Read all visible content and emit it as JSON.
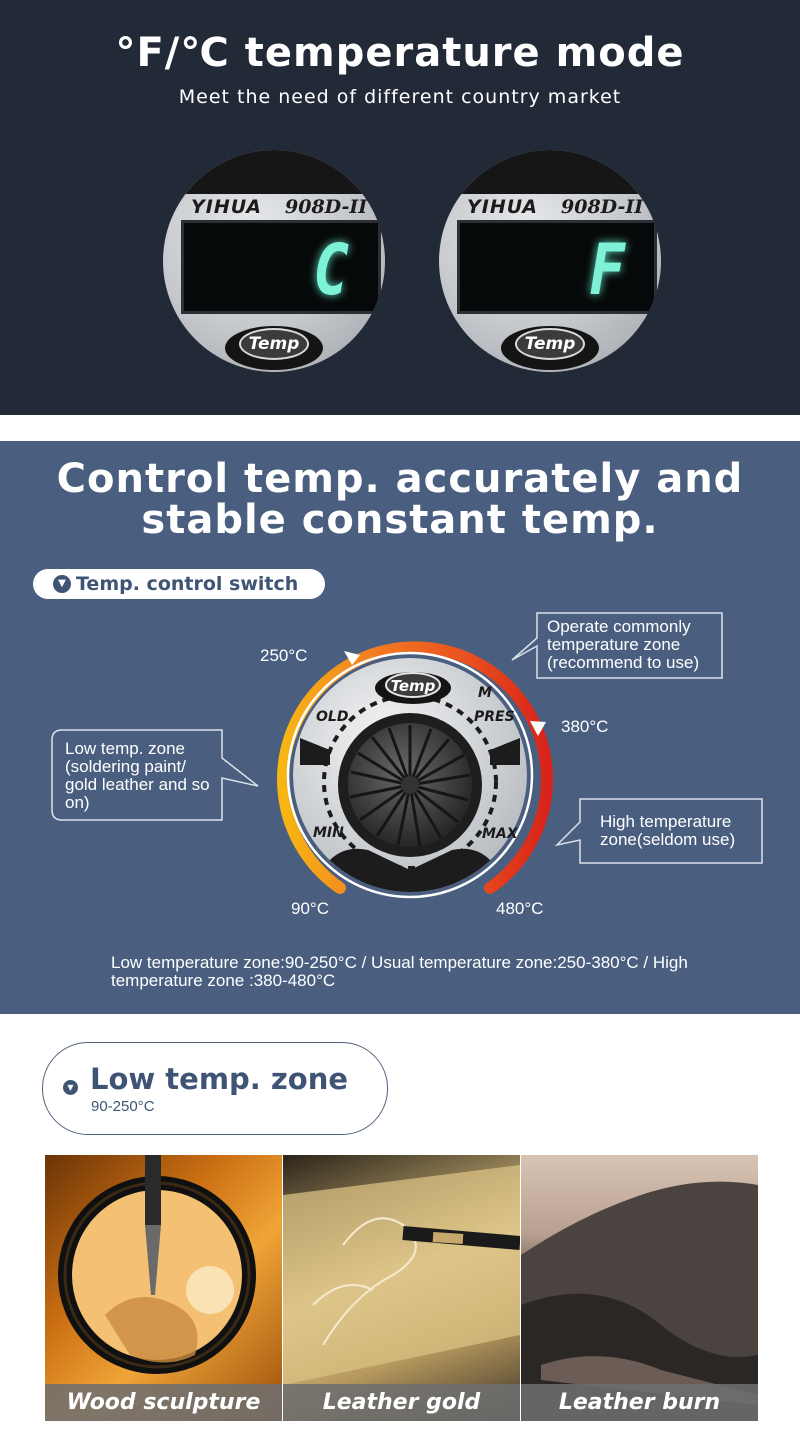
{
  "section1": {
    "title": "°F/℃ temperature mode",
    "subtitle": "Meet the need of different country market",
    "displays": [
      {
        "brand": "YIHUA",
        "model": "908D-II",
        "readout": "C",
        "button": "Temp"
      },
      {
        "brand": "YIHUA",
        "model": "908D-II",
        "readout": "F",
        "button": "Temp"
      }
    ]
  },
  "section2": {
    "title_line1": "Control temp. accurately and",
    "title_line2": "stable constant temp.",
    "switch_label": "Temp. control switch",
    "dial": {
      "button": "Temp",
      "labels": {
        "hold": "OLD",
        "preset": "PRES",
        "min": "MIN",
        "max": "MAX",
        "mem": "M"
      },
      "temps": {
        "t90": "90°C",
        "t250": "250°C",
        "t380": "380°C",
        "t480": "480°C"
      }
    },
    "callouts": {
      "operate": "Operate commonly temperature zone (recommend to use)",
      "low": "Low temp. zone (soldering paint/ gold leather and so on)",
      "high": "High temperature zone(seldom use)"
    },
    "note": "Low temperature zone:90-250°C / Usual temperature zone:250-380°C / High temperature zone :380-480°C"
  },
  "section3": {
    "zone_title": "Low temp. zone",
    "zone_range": "90-250°C",
    "photos": [
      {
        "caption": "Wood sculpture"
      },
      {
        "caption": "Leather gold"
      },
      {
        "caption": "Leather burn"
      }
    ]
  }
}
